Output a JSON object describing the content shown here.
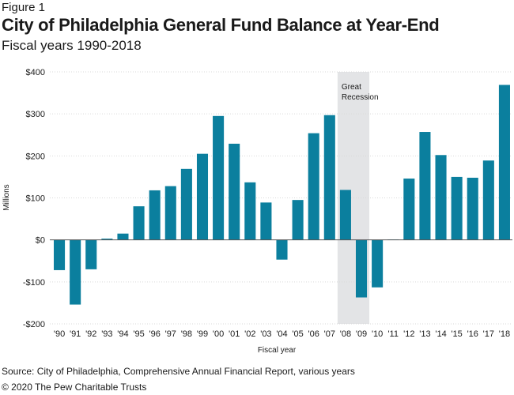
{
  "figure_label": "Figure 1",
  "title": "City of Philadelphia General Fund Balance at Year-End",
  "subtitle": "Fiscal years 1990-2018",
  "source": "Source: City of Philadelphia, Comprehensive Annual Financial Report, various years",
  "copyright": "© 2020 The Pew Charitable Trusts",
  "colors": {
    "bar": "#0b7f9e",
    "shade": "#e3e4e6",
    "grid": "#d9d9d9",
    "zero": "#555555"
  },
  "chart_data": {
    "type": "bar",
    "title": "City of Philadelphia General Fund Balance at Year-End",
    "subtitle": "Fiscal years 1990-2018",
    "xlabel": "Fiscal year",
    "ylabel": "Millions",
    "ylim": [
      -200,
      400
    ],
    "yticks": [
      -200,
      -100,
      0,
      100,
      200,
      300,
      400
    ],
    "ytick_labels": [
      "-$200",
      "-$100",
      "$0",
      "$100",
      "$200",
      "$300",
      "$400"
    ],
    "grid": true,
    "categories": [
      "'90",
      "'91",
      "'92",
      "'93",
      "'94",
      "'95",
      "'96",
      "'97",
      "'98",
      "'99",
      "'00",
      "'01",
      "'02",
      "'03",
      "'04",
      "'05",
      "'06",
      "'07",
      "'08",
      "'09",
      "'10",
      "'11",
      "'12",
      "'13",
      "'14",
      "'15",
      "'16",
      "'17",
      "'18"
    ],
    "values": [
      -72,
      -154,
      -70,
      3,
      15,
      80,
      118,
      128,
      169,
      205,
      295,
      229,
      137,
      89,
      -47,
      95,
      254,
      297,
      119,
      -137,
      -113,
      1,
      146,
      257,
      202,
      150,
      148,
      189,
      369
    ],
    "annotations": [
      {
        "label": "Great Recession",
        "lines": [
          "Great",
          "Recession"
        ],
        "x_start": "'08",
        "x_end": "'09"
      }
    ]
  }
}
